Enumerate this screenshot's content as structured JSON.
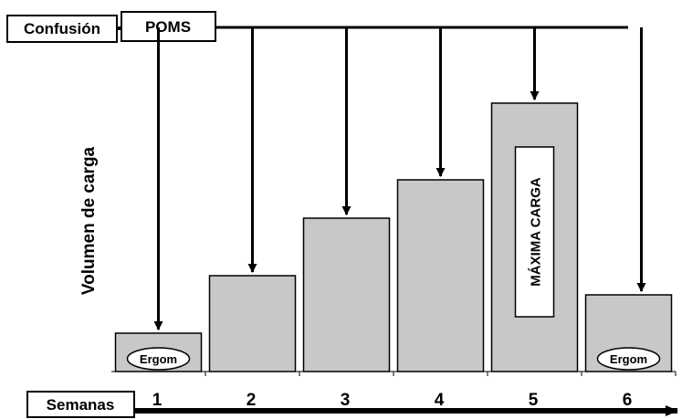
{
  "header": {
    "confusion_label": "Confusión",
    "poms_label": "POMS"
  },
  "axes": {
    "ylabel": "Volumen de carga",
    "xlabel": "Semanas"
  },
  "chart_data": {
    "type": "bar",
    "title": "",
    "xlabel": "Semanas",
    "ylabel": "Volumen de carga",
    "categories": [
      "1",
      "2",
      "3",
      "4",
      "5",
      "6"
    ],
    "values": [
      1,
      2.5,
      4,
      5,
      7,
      2
    ],
    "annotations": {
      "bar_1": "Ergom",
      "bar_5": "MÁXIMA CARGA",
      "bar_6": "Ergom"
    },
    "colors": {
      "bar_fill": "#c8c8c8",
      "stroke": "#000000"
    }
  }
}
